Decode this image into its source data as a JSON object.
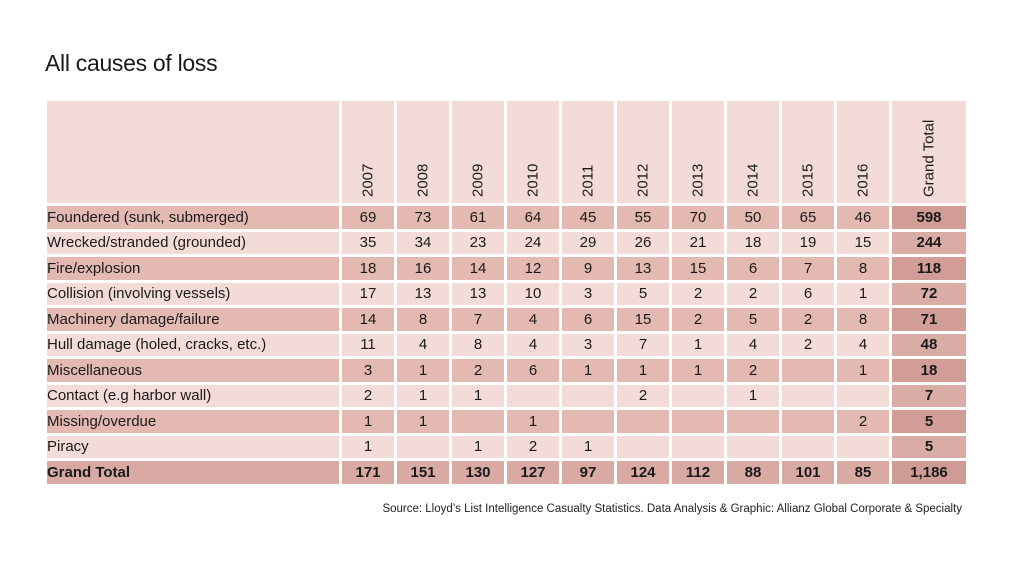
{
  "title": "All causes of loss",
  "source": "Source: Lloyd’s List Intelligence Casualty Statistics.  Data Analysis & Graphic: Allianz Global Corporate & Specialty",
  "colors": {
    "row_dark": "#e3b9b1",
    "row_light": "#f3dcd7",
    "total_cell": "#d19d96",
    "grand_total_row": "#d9aaa3"
  },
  "chart_data": {
    "type": "table",
    "title": "All causes of loss",
    "columns": [
      "2007",
      "2008",
      "2009",
      "2010",
      "2011",
      "2012",
      "2013",
      "2014",
      "2015",
      "2016",
      "Grand Total"
    ],
    "rows": [
      {
        "label": "Foundered (sunk, submerged)",
        "values": [
          "69",
          "73",
          "61",
          "64",
          "45",
          "55",
          "70",
          "50",
          "65",
          "46"
        ],
        "total": "598"
      },
      {
        "label": "Wrecked/stranded (grounded)",
        "values": [
          "35",
          "34",
          "23",
          "24",
          "29",
          "26",
          "21",
          "18",
          "19",
          "15"
        ],
        "total": "244"
      },
      {
        "label": "Fire/explosion",
        "values": [
          "18",
          "16",
          "14",
          "12",
          "9",
          "13",
          "15",
          "6",
          "7",
          "8"
        ],
        "total": "118"
      },
      {
        "label": "Collision (involving vessels)",
        "values": [
          "17",
          "13",
          "13",
          "10",
          "3",
          "5",
          "2",
          "2",
          "6",
          "1"
        ],
        "total": "72"
      },
      {
        "label": "Machinery damage/failure",
        "values": [
          "14",
          "8",
          "7",
          "4",
          "6",
          "15",
          "2",
          "5",
          "2",
          "8"
        ],
        "total": "71"
      },
      {
        "label": "Hull damage (holed, cracks, etc.)",
        "values": [
          "11",
          "4",
          "8",
          "4",
          "3",
          "7",
          "1",
          "4",
          "2",
          "4"
        ],
        "total": "48"
      },
      {
        "label": "Miscellaneous",
        "values": [
          "3",
          "1",
          "2",
          "6",
          "1",
          "1",
          "1",
          "2",
          "",
          "1"
        ],
        "total": "18"
      },
      {
        "label": "Contact (e.g harbor wall)",
        "values": [
          "2",
          "1",
          "1",
          "",
          "",
          "2",
          "",
          "1",
          "",
          ""
        ],
        "total": "7"
      },
      {
        "label": "Missing/overdue",
        "values": [
          "1",
          "1",
          "",
          "1",
          "",
          "",
          "",
          "",
          "",
          "2"
        ],
        "total": "5"
      },
      {
        "label": "Piracy",
        "values": [
          "1",
          "",
          "1",
          "2",
          "1",
          "",
          "",
          "",
          "",
          ""
        ],
        "total": "5"
      }
    ],
    "grand_total": {
      "label": "Grand Total",
      "values": [
        "171",
        "151",
        "130",
        "127",
        "97",
        "124",
        "112",
        "88",
        "101",
        "85"
      ],
      "total": "1,186"
    }
  }
}
